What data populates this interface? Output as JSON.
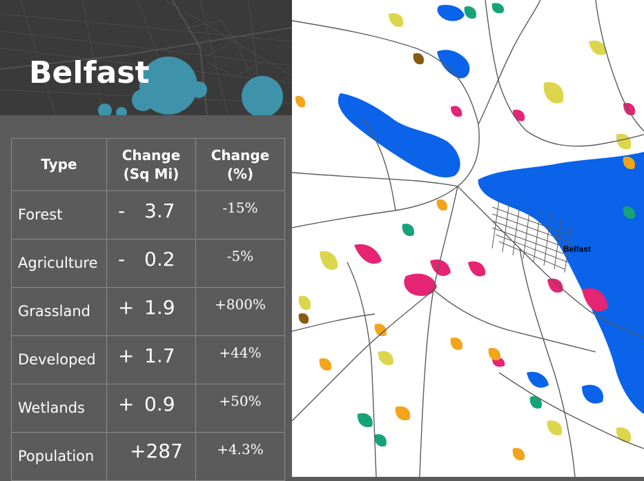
{
  "title": "Belfast",
  "table": {
    "headers": {
      "type": "Type",
      "change_sq_mi_line1": "Change",
      "change_sq_mi_line2": "(Sq Mi)",
      "change_pct_line1": "Change",
      "change_pct_line2": "(%)"
    },
    "rows": [
      {
        "type": "Forest",
        "sign": "-",
        "value": "3.7",
        "pct": "-15%"
      },
      {
        "type": "Agriculture",
        "sign": "-",
        "value": "0.2",
        "pct": "-5%"
      },
      {
        "type": "Grassland",
        "sign": "+",
        "value": "1.9",
        "pct": "+800%"
      },
      {
        "type": "Developed",
        "sign": "+",
        "value": "1.7",
        "pct": "+44%"
      },
      {
        "type": "Wetlands",
        "sign": "+",
        "value": "0.9",
        "pct": "+50%"
      },
      {
        "type": "Population",
        "sign": "",
        "value": "+287",
        "pct": "+4.3%"
      }
    ]
  },
  "map": {
    "label": "Belfast",
    "colors": {
      "water": "#0a63e8",
      "developed": "#e52474",
      "grassland": "#dcd64c",
      "agriculture": "#f2a51a",
      "wetlands": "#16a37a",
      "forest_loss": "#8a5a10",
      "roads": "#5a5a5a"
    }
  },
  "colors": {
    "panel_bg": "#5b5b5b",
    "banner_bg": "#3a3a3a",
    "bubble": "#3fa3be",
    "text": "#ffffff"
  }
}
